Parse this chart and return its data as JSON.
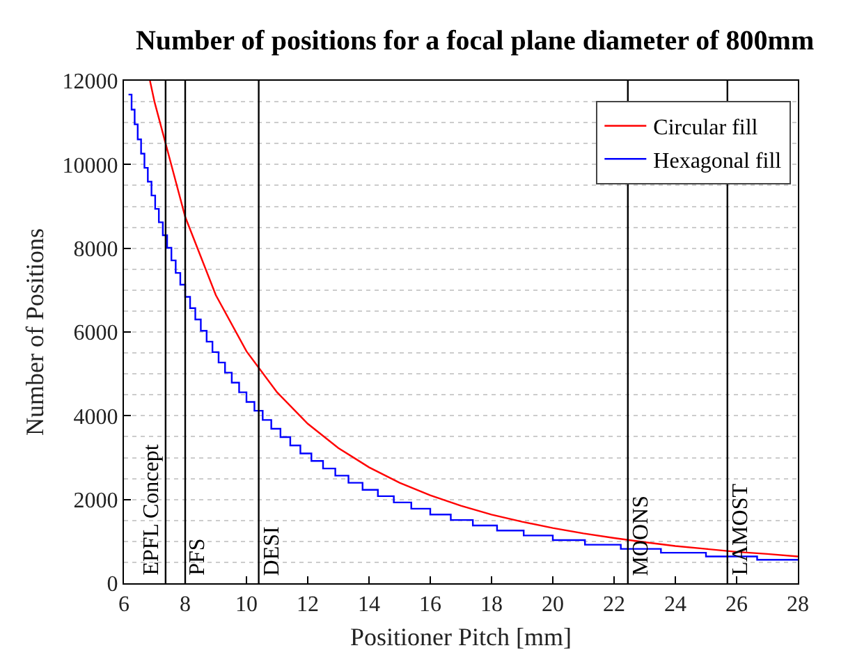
{
  "chart_data": {
    "type": "line",
    "title": "Number of positions for a focal plane diameter of 800mm",
    "xlabel": "Positioner Pitch [mm]",
    "ylabel": "Number of Positions",
    "xlim": [
      6,
      28
    ],
    "ylim": [
      0,
      12000
    ],
    "xticks": [
      6,
      8,
      10,
      12,
      14,
      16,
      18,
      20,
      22,
      24,
      26,
      28
    ],
    "yticks": [
      0,
      2000,
      4000,
      6000,
      8000,
      10000,
      12000
    ],
    "grid": "y",
    "legend": "top right",
    "marker": "none",
    "line_style": "solid",
    "series": [
      {
        "name": "Circular fill",
        "color": "#ff0000",
        "x": [
          6.85,
          7,
          8,
          9,
          10,
          11,
          12,
          13,
          14,
          15,
          16,
          17,
          18,
          19,
          20,
          21,
          22,
          23,
          24,
          25,
          26,
          27,
          28
        ],
        "values": [
          12000,
          11490,
          8750,
          6880,
          5540,
          4560,
          3810,
          3230,
          2770,
          2400,
          2100,
          1850,
          1640,
          1470,
          1320,
          1190,
          1080,
          980,
          890,
          820,
          750,
          700,
          640
        ]
      },
      {
        "name": "Hexagonal fill",
        "color": "#0000ff",
        "type": "step",
        "x": [
          6.15,
          6.25,
          6.35,
          6.45,
          6.56,
          6.67,
          6.78,
          6.9,
          7.02,
          7.14,
          7.27,
          7.41,
          7.55,
          7.69,
          7.84,
          8.0,
          8.16,
          8.33,
          8.51,
          8.7,
          8.89,
          9.09,
          9.3,
          9.52,
          9.76,
          10.0,
          10.26,
          10.53,
          10.81,
          11.11,
          11.43,
          11.76,
          12.12,
          12.5,
          12.9,
          13.33,
          13.79,
          14.29,
          14.81,
          15.38,
          16.0,
          16.67,
          17.39,
          18.18,
          19.05,
          20.0,
          21.05,
          22.22,
          23.53,
          25.0,
          26.67,
          28
        ],
        "values": [
          11670,
          11310,
          10960,
          10600,
          10260,
          9920,
          9590,
          9260,
          8940,
          8620,
          8310,
          8010,
          7710,
          7410,
          7130,
          6840,
          6570,
          6300,
          6030,
          5770,
          5520,
          5270,
          5030,
          4790,
          4560,
          4330,
          4120,
          3900,
          3690,
          3490,
          3290,
          3100,
          2920,
          2740,
          2570,
          2400,
          2230,
          2080,
          1930,
          1780,
          1640,
          1510,
          1380,
          1260,
          1140,
          1030,
          920,
          820,
          730,
          640,
          560,
          560
        ]
      }
    ],
    "ref_lines": [
      {
        "axis": "x",
        "value": 7.36,
        "label": "EPFL Concept",
        "color": "#000000"
      },
      {
        "axis": "x",
        "value": 8.0,
        "label": "PFS",
        "color": "#000000"
      },
      {
        "axis": "x",
        "value": 10.4,
        "label": "DESI",
        "color": "#000000"
      },
      {
        "axis": "x",
        "value": 22.45,
        "label": "MOONS",
        "color": "#000000"
      },
      {
        "axis": "x",
        "value": 25.7,
        "label": "LAMOST",
        "color": "#000000"
      }
    ]
  }
}
